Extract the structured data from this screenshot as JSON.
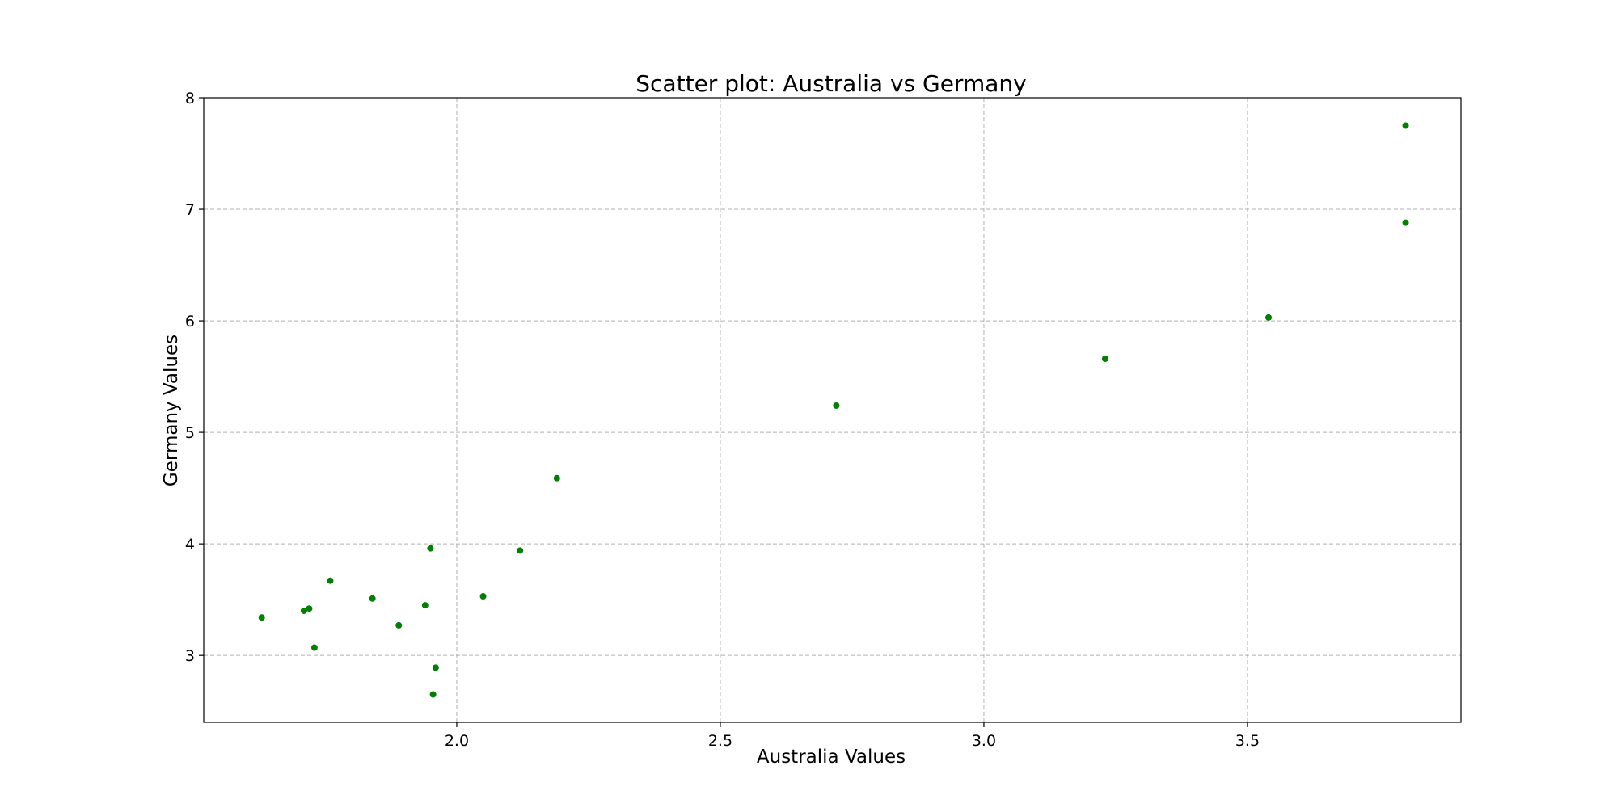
{
  "chart_data": {
    "type": "scatter",
    "title": "Scatter plot: Australia vs Germany",
    "xlabel": "Australia Values",
    "ylabel": "Germany Values",
    "xlim": [
      1.52,
      3.905
    ],
    "ylim": [
      2.4,
      8.0
    ],
    "x_ticks": [
      2.0,
      2.5,
      3.0,
      3.5
    ],
    "x_tick_labels": [
      "2.0",
      "2.5",
      "3.0",
      "3.5"
    ],
    "y_ticks": [
      3,
      4,
      5,
      6,
      7,
      8
    ],
    "y_tick_labels": [
      "3",
      "4",
      "5",
      "6",
      "7",
      "8"
    ],
    "grid": true,
    "point_color": "#008000",
    "grid_color": "#b0b0b0",
    "points": [
      {
        "x": 1.63,
        "y": 3.34
      },
      {
        "x": 1.71,
        "y": 3.4
      },
      {
        "x": 1.72,
        "y": 3.42
      },
      {
        "x": 1.73,
        "y": 3.07
      },
      {
        "x": 1.76,
        "y": 3.67
      },
      {
        "x": 1.84,
        "y": 3.51
      },
      {
        "x": 1.89,
        "y": 3.27
      },
      {
        "x": 1.94,
        "y": 3.45
      },
      {
        "x": 1.95,
        "y": 3.96
      },
      {
        "x": 1.955,
        "y": 2.65
      },
      {
        "x": 1.96,
        "y": 2.89
      },
      {
        "x": 2.05,
        "y": 3.53
      },
      {
        "x": 2.12,
        "y": 3.94
      },
      {
        "x": 2.19,
        "y": 4.59
      },
      {
        "x": 2.72,
        "y": 5.24
      },
      {
        "x": 3.23,
        "y": 5.66
      },
      {
        "x": 3.54,
        "y": 6.03
      },
      {
        "x": 3.8,
        "y": 6.88
      },
      {
        "x": 3.8,
        "y": 7.75
      }
    ]
  }
}
